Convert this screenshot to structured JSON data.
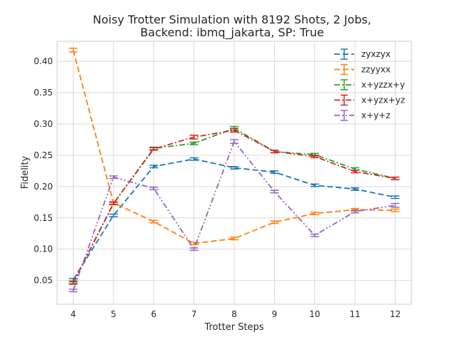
{
  "chart_data": {
    "type": "line",
    "title_line1": "Noisy Trotter Simulation with 8192 Shots, 2 Jobs,",
    "title_line2": "Backend: ibmq_jakarta, SP: True",
    "xlabel": "Trotter Steps",
    "ylabel": "Fidelity",
    "x": [
      4,
      5,
      6,
      7,
      8,
      9,
      10,
      11,
      12
    ],
    "xlim": [
      3.6,
      12.4
    ],
    "ylim": [
      0.012,
      0.432
    ],
    "yticks": [
      0.05,
      0.1,
      0.15,
      0.2,
      0.25,
      0.3,
      0.35,
      0.4
    ],
    "ytick_labels": [
      "0.05",
      "0.10",
      "0.15",
      "0.20",
      "0.25",
      "0.30",
      "0.35",
      "0.40"
    ],
    "grid": true,
    "legend_position": "top-right",
    "series": [
      {
        "name": "zyxzyx",
        "color": "#1f77b4",
        "dash": "dashed",
        "values": [
          0.051,
          0.154,
          0.232,
          0.244,
          0.23,
          0.223,
          0.202,
          0.196,
          0.183
        ],
        "errors": [
          0.002,
          0.002,
          0.002,
          0.002,
          0.002,
          0.002,
          0.002,
          0.002,
          0.002
        ]
      },
      {
        "name": "zzyyxx",
        "color": "#ff7f0e",
        "dash": "dashed",
        "values": [
          0.418,
          0.174,
          0.144,
          0.109,
          0.117,
          0.143,
          0.157,
          0.163,
          0.162
        ],
        "errors": [
          0.003,
          0.002,
          0.002,
          0.002,
          0.002,
          0.002,
          0.002,
          0.002,
          0.002
        ]
      },
      {
        "name": "x+yzzx+y",
        "color": "#2ca02c",
        "dash": "dashdot",
        "values": [
          0.047,
          0.173,
          0.261,
          0.269,
          0.293,
          0.256,
          0.251,
          0.228,
          0.213
        ],
        "errors": [
          0.002,
          0.002,
          0.002,
          0.002,
          0.003,
          0.002,
          0.002,
          0.002,
          0.002
        ]
      },
      {
        "name": "x+yzx+yz",
        "color": "#d62728",
        "dash": "dashdot",
        "values": [
          0.046,
          0.173,
          0.26,
          0.279,
          0.29,
          0.256,
          0.248,
          0.224,
          0.213
        ],
        "errors": [
          0.002,
          0.002,
          0.002,
          0.003,
          0.003,
          0.002,
          0.002,
          0.002,
          0.002
        ]
      },
      {
        "name": "x+y+z",
        "color": "#9467bd",
        "dash": "dashdotdot",
        "values": [
          0.034,
          0.215,
          0.197,
          0.1,
          0.272,
          0.192,
          0.122,
          0.16,
          0.17
        ],
        "errors": [
          0.002,
          0.002,
          0.002,
          0.002,
          0.003,
          0.002,
          0.002,
          0.002,
          0.003
        ]
      }
    ]
  }
}
